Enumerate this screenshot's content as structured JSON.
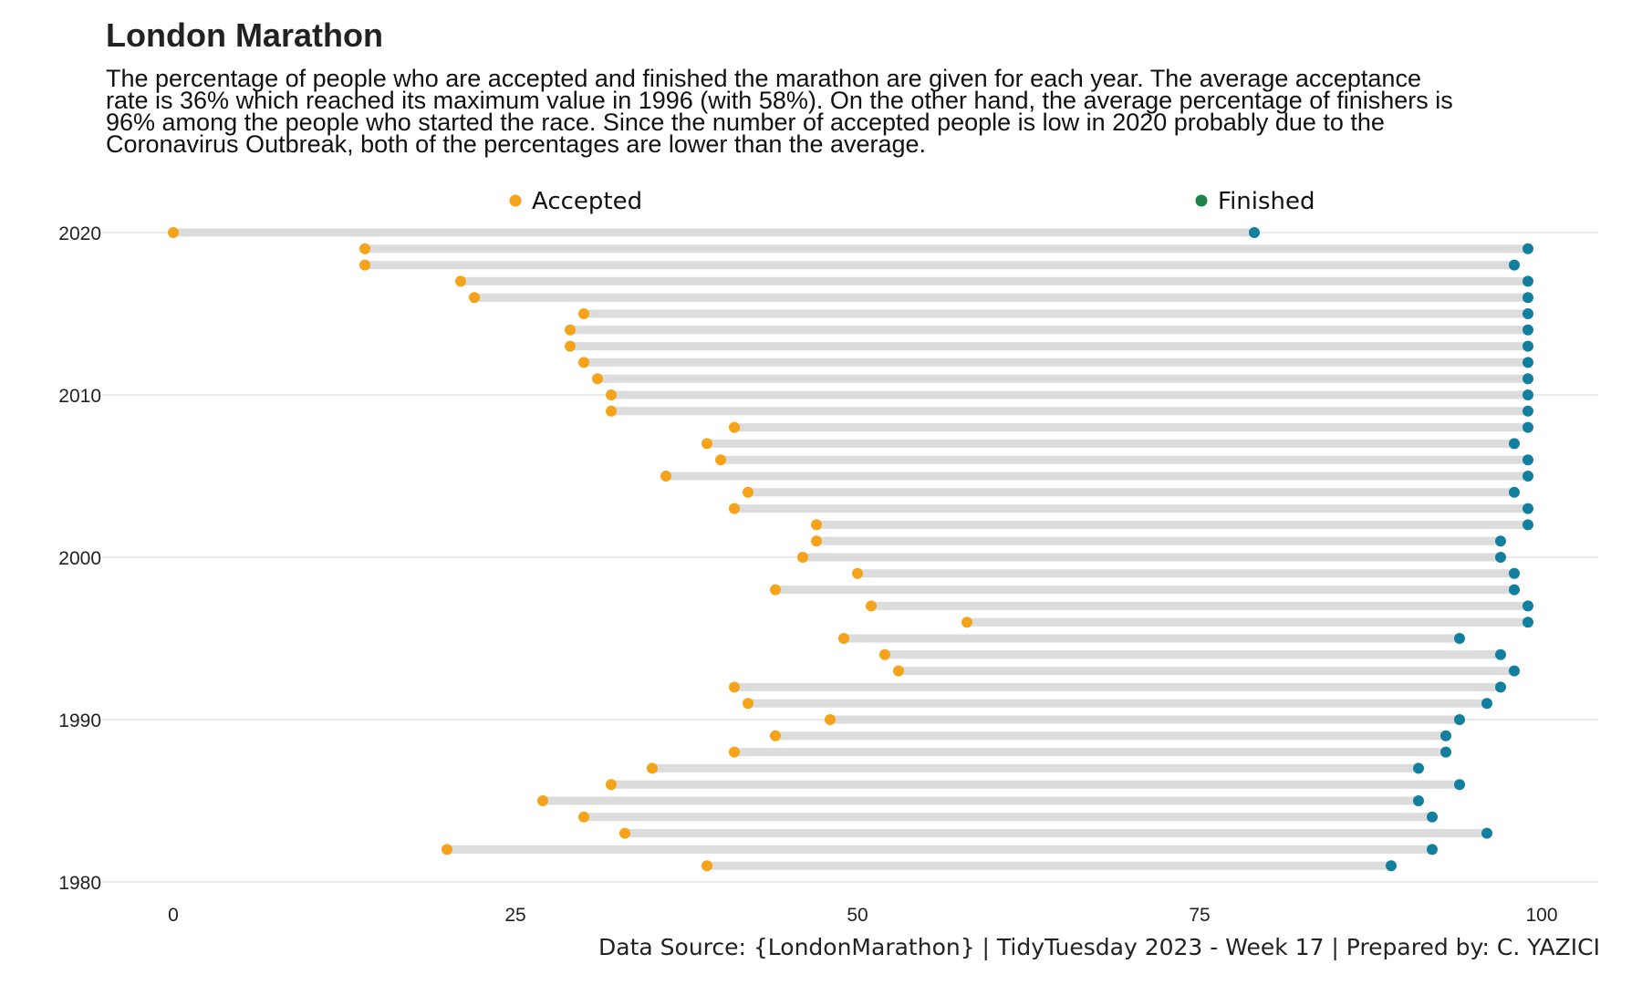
{
  "title": "London Marathon",
  "subtitle": "The percentage of people who are accepted and finished the marathon are given for each year. The average acceptance rate is 36% which reached its maximum value in 1996 (with 58%). On the other hand, the average percentage of finishers is 96% among the people who started the race. Since the number of accepted people is low in 2020 probably due to the Coronavirus Outbreak, both of the percentages are lower than the average.",
  "caption": "Data Source: {LondonMarathon} | TidyTuesday 2023 - Week 17 | Prepared by: C. YAZICI",
  "colors": {
    "accepted": "#F5A31A",
    "finished": "#137F9E",
    "finished_legend": "#1E8449",
    "segment": "#DCDCDC",
    "grid": "#D3D3D3"
  },
  "chart_data": {
    "type": "dumbbell",
    "legend": [
      {
        "label": "Accepted",
        "color": "#F5A31A"
      },
      {
        "label": "Finished",
        "color": "#1E8449"
      }
    ],
    "legend_position": "top",
    "xlim": [
      0,
      100
    ],
    "x_ticks": [
      0,
      25,
      50,
      75,
      100
    ],
    "ylim": [
      1980,
      2020
    ],
    "y_ticks": [
      1980,
      1990,
      2000,
      2010,
      2020
    ],
    "grid": "horizontal",
    "rows": [
      {
        "year": 2020,
        "accepted": 0,
        "finished": 79
      },
      {
        "year": 2019,
        "accepted": 14,
        "finished": 99
      },
      {
        "year": 2018,
        "accepted": 14,
        "finished": 98
      },
      {
        "year": 2017,
        "accepted": 21,
        "finished": 99
      },
      {
        "year": 2016,
        "accepted": 22,
        "finished": 99
      },
      {
        "year": 2015,
        "accepted": 30,
        "finished": 99
      },
      {
        "year": 2014,
        "accepted": 29,
        "finished": 99
      },
      {
        "year": 2013,
        "accepted": 29,
        "finished": 99
      },
      {
        "year": 2012,
        "accepted": 30,
        "finished": 99
      },
      {
        "year": 2011,
        "accepted": 31,
        "finished": 99
      },
      {
        "year": 2010,
        "accepted": 32,
        "finished": 99
      },
      {
        "year": 2009,
        "accepted": 32,
        "finished": 99
      },
      {
        "year": 2008,
        "accepted": 41,
        "finished": 99
      },
      {
        "year": 2007,
        "accepted": 39,
        "finished": 98
      },
      {
        "year": 2006,
        "accepted": 40,
        "finished": 99
      },
      {
        "year": 2005,
        "accepted": 36,
        "finished": 99
      },
      {
        "year": 2004,
        "accepted": 42,
        "finished": 98
      },
      {
        "year": 2003,
        "accepted": 41,
        "finished": 99
      },
      {
        "year": 2002,
        "accepted": 47,
        "finished": 99
      },
      {
        "year": 2001,
        "accepted": 47,
        "finished": 97
      },
      {
        "year": 2000,
        "accepted": 46,
        "finished": 97
      },
      {
        "year": 1999,
        "accepted": 50,
        "finished": 98
      },
      {
        "year": 1998,
        "accepted": 44,
        "finished": 98
      },
      {
        "year": 1997,
        "accepted": 51,
        "finished": 99
      },
      {
        "year": 1996,
        "accepted": 58,
        "finished": 99
      },
      {
        "year": 1995,
        "accepted": 49,
        "finished": 94
      },
      {
        "year": 1994,
        "accepted": 52,
        "finished": 97
      },
      {
        "year": 1993,
        "accepted": 53,
        "finished": 98
      },
      {
        "year": 1992,
        "accepted": 41,
        "finished": 97
      },
      {
        "year": 1991,
        "accepted": 42,
        "finished": 96
      },
      {
        "year": 1990,
        "accepted": 48,
        "finished": 94
      },
      {
        "year": 1989,
        "accepted": 44,
        "finished": 93
      },
      {
        "year": 1988,
        "accepted": 41,
        "finished": 93
      },
      {
        "year": 1987,
        "accepted": 35,
        "finished": 91
      },
      {
        "year": 1986,
        "accepted": 32,
        "finished": 94
      },
      {
        "year": 1985,
        "accepted": 27,
        "finished": 91
      },
      {
        "year": 1984,
        "accepted": 30,
        "finished": 92
      },
      {
        "year": 1983,
        "accepted": 33,
        "finished": 96
      },
      {
        "year": 1982,
        "accepted": 20,
        "finished": 92
      },
      {
        "year": 1981,
        "accepted": 39,
        "finished": 89
      }
    ]
  }
}
